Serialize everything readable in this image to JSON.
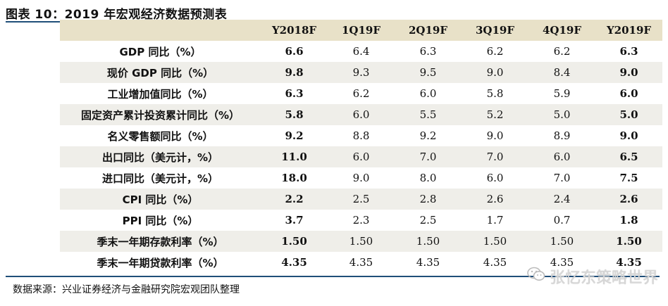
{
  "title": "图表 10：2019 年宏观经济数据预测表",
  "table": {
    "headers": [
      "",
      "Y2018F",
      "1Q19F",
      "2Q19F",
      "3Q19F",
      "4Q19F",
      "Y2019F"
    ],
    "rows": [
      {
        "label": "GDP 同比（%）",
        "values": [
          "6.6",
          "6.4",
          "6.3",
          "6.2",
          "6.2",
          "6.3"
        ]
      },
      {
        "label": "现价 GDP 同比（%）",
        "values": [
          "9.8",
          "9.3",
          "9.5",
          "9.0",
          "8.4",
          "9.0"
        ]
      },
      {
        "label": "工业增加值同比（%）",
        "values": [
          "6.3",
          "6.2",
          "6.0",
          "5.8",
          "5.9",
          "6.0"
        ]
      },
      {
        "label": "固定资产累计投资累计同比（%）",
        "values": [
          "5.8",
          "6.0",
          "5.5",
          "5.2",
          "5.0",
          "5.0"
        ]
      },
      {
        "label": "名义零售额同比（%）",
        "values": [
          "9.2",
          "8.8",
          "9.2",
          "9.0",
          "8.9",
          "9.0"
        ]
      },
      {
        "label": "出口同比（美元计，%）",
        "values": [
          "11.0",
          "6.0",
          "7.0",
          "7.0",
          "6.0",
          "6.5"
        ]
      },
      {
        "label": "进口同比（美元计，%）",
        "values": [
          "18.0",
          "9.0",
          "8.0",
          "6.0",
          "7.0",
          "7.5"
        ]
      },
      {
        "label": "CPI 同比（%）",
        "values": [
          "2.2",
          "2.5",
          "2.8",
          "2.6",
          "2.4",
          "2.6"
        ]
      },
      {
        "label": "PPI 同比（%）",
        "values": [
          "3.7",
          "2.3",
          "2.5",
          "1.7",
          "0.7",
          "1.8"
        ]
      },
      {
        "label": "季末一年期存款利率（%）",
        "values": [
          "1.50",
          "1.50",
          "1.50",
          "1.50",
          "1.50",
          "1.50"
        ]
      },
      {
        "label": "季末一年期贷款利率（%）",
        "values": [
          "4.35",
          "4.35",
          "4.35",
          "4.35",
          "4.35",
          "4.35"
        ]
      }
    ]
  },
  "source": "数据来源：兴业证券经济与金融研究院宏观团队整理",
  "watermark": {
    "text": "张忆东策略世界",
    "icon": "wechat-icon"
  }
}
